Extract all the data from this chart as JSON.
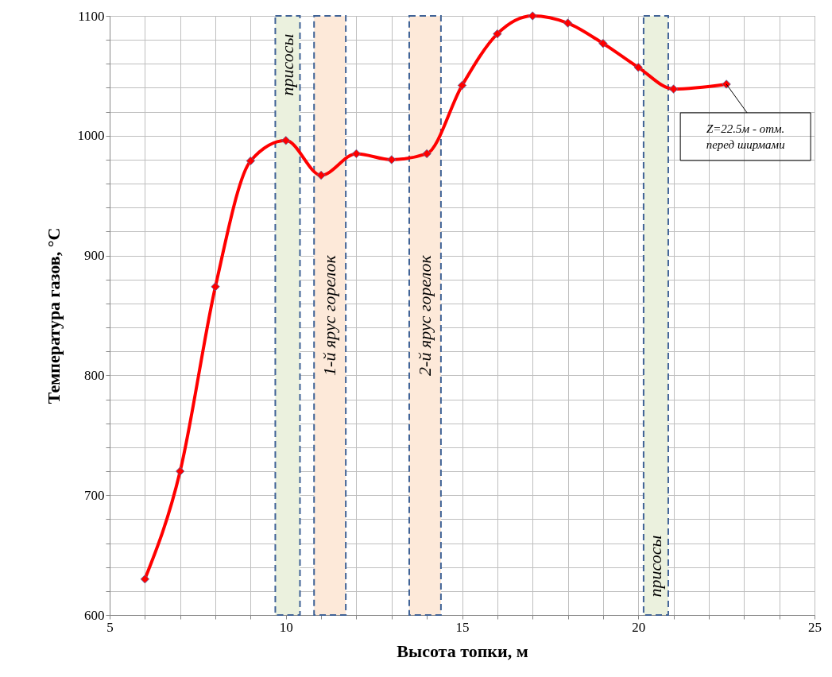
{
  "chart_data": {
    "type": "line",
    "xlabel": "Высота топки, м",
    "ylabel": "Температура газов, °С",
    "x": [
      6,
      7,
      8,
      9,
      10,
      11,
      12,
      13,
      14,
      15,
      16,
      17,
      18,
      19,
      20,
      21,
      22.5
    ],
    "series": [
      {
        "color": "#ff0000",
        "values": [
          630,
          720,
          874,
          979,
          996,
          967,
          985,
          980,
          985,
          1042,
          1085,
          1100,
          1094,
          1077,
          1057,
          1039,
          1043
        ]
      }
    ],
    "xlim": [
      5,
      25
    ],
    "ylim": [
      600,
      1100
    ],
    "xticks": [
      5,
      {
        "value": 6,
        "label": null
      },
      {
        "value": 7,
        "label": null
      },
      {
        "value": 8,
        "label": null
      },
      {
        "value": 9,
        "label": null
      },
      10,
      {
        "value": 11,
        "label": null
      },
      {
        "value": 12,
        "label": null
      },
      {
        "value": 13,
        "label": null
      },
      {
        "value": 14,
        "label": null
      },
      15,
      {
        "value": 16,
        "label": null
      },
      {
        "value": 17,
        "label": null
      },
      {
        "value": 18,
        "label": null
      },
      {
        "value": 19,
        "label": null
      },
      20,
      {
        "value": 21,
        "label": null
      },
      {
        "value": 22,
        "label": null
      },
      {
        "value": 23,
        "label": null
      },
      {
        "value": 24,
        "label": null
      },
      25
    ],
    "yticks": [
      600,
      {
        "value": 620,
        "label": null
      },
      {
        "value": 640,
        "label": null
      },
      {
        "value": 660,
        "label": null
      },
      {
        "value": 680,
        "label": null
      },
      700,
      {
        "value": 720,
        "label": null
      },
      {
        "value": 740,
        "label": null
      },
      {
        "value": 760,
        "label": null
      },
      {
        "value": 780,
        "label": null
      },
      800,
      {
        "value": 820,
        "label": null
      },
      {
        "value": 840,
        "label": null
      },
      {
        "value": 860,
        "label": null
      },
      {
        "value": 880,
        "label": null
      },
      900,
      {
        "value": 920,
        "label": null
      },
      {
        "value": 940,
        "label": null
      },
      {
        "value": 960,
        "label": null
      },
      {
        "value": 980,
        "label": null
      },
      1000,
      {
        "value": 1020,
        "label": null
      },
      {
        "value": 1040,
        "label": null
      },
      {
        "value": 1060,
        "label": null
      },
      {
        "value": 1080,
        "label": null
      },
      1100
    ],
    "bands": [
      {
        "axis": "x",
        "from": 9.7,
        "to": 10.4,
        "label": "присосы",
        "color": "#ebf1de"
      },
      {
        "axis": "x",
        "from": 10.8,
        "to": 11.7,
        "label": "1-й ярус горелок",
        "color": "#fde9d9"
      },
      {
        "axis": "x",
        "from": 13.5,
        "to": 14.4,
        "label": "2-й ярус горелок",
        "color": "#fde9d9"
      },
      {
        "axis": "x",
        "from": 20.15,
        "to": 20.85,
        "label": "присосы",
        "color": "#ebf1de"
      }
    ],
    "annotations": [
      {
        "text": "Z=22.5м - отм.\nперед ширмами",
        "x": 22.5,
        "y": 1043
      }
    ],
    "grid": true,
    "marker": "diamond",
    "line_style": "solid"
  }
}
